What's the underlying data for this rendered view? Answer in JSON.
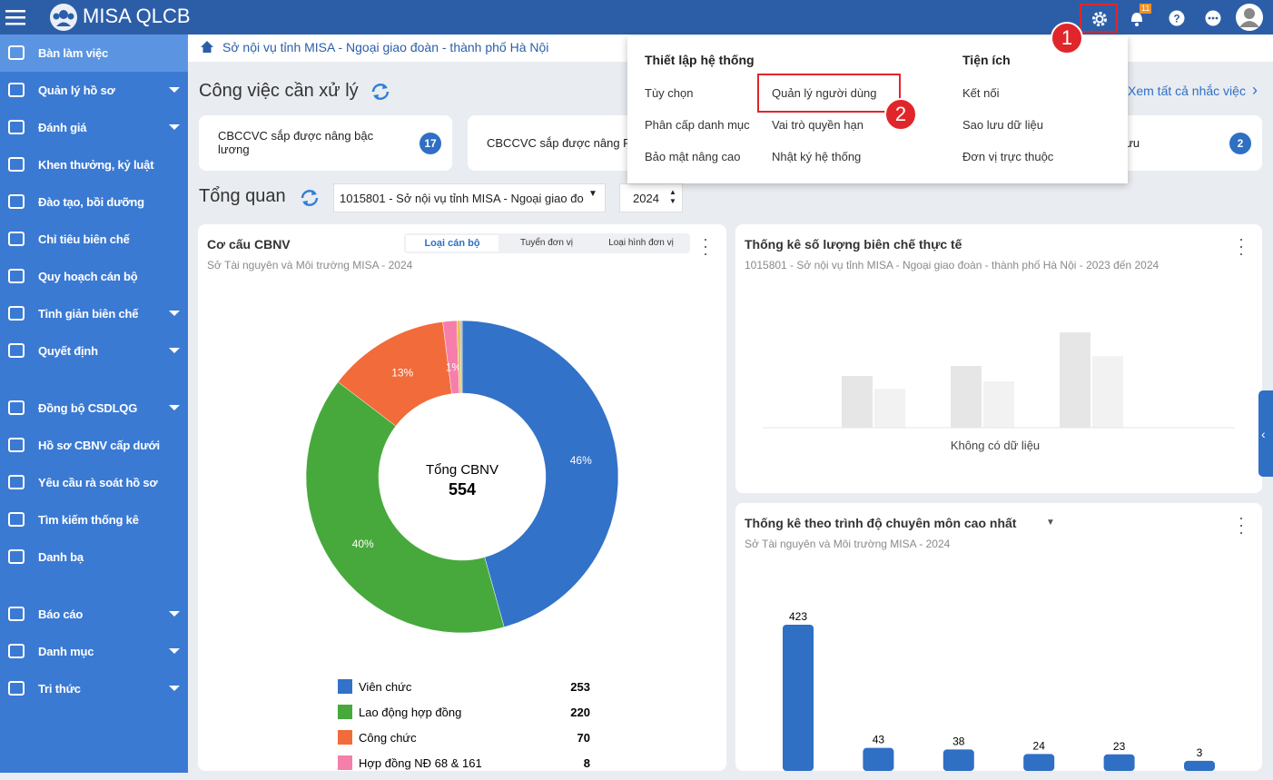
{
  "header": {
    "app_name": "MISA QLCB",
    "notification_count": 11
  },
  "breadcrumb": "Sở nội vụ tỉnh MISA - Ngoại giao đoàn - thành phố Hà Nội",
  "sidebar": {
    "items": [
      {
        "label": "Bàn làm việc",
        "expandable": false,
        "active": true
      },
      {
        "label": "Quản lý hồ sơ",
        "expandable": true,
        "active": false
      },
      {
        "label": "Đánh giá",
        "expandable": true,
        "active": false
      },
      {
        "label": "Khen thưởng, kỷ luật",
        "expandable": false,
        "active": false
      },
      {
        "label": "Đào tạo, bồi dưỡng",
        "expandable": false,
        "active": false
      },
      {
        "label": "Chỉ tiêu biên chế",
        "expandable": false,
        "active": false
      },
      {
        "label": "Quy hoạch cán bộ",
        "expandable": false,
        "active": false
      },
      {
        "label": "Tinh giản biên chế",
        "expandable": true,
        "active": false
      },
      {
        "label": "Quyết định",
        "expandable": true,
        "active": false
      },
      {
        "label": "Đồng bộ CSDLQG",
        "expandable": true,
        "active": false
      },
      {
        "label": "Hồ sơ CBNV cấp dưới",
        "expandable": false,
        "active": false
      },
      {
        "label": "Yêu cầu rà soát hồ sơ",
        "expandable": false,
        "active": false
      },
      {
        "label": "Tìm kiếm thống kê",
        "expandable": false,
        "active": false
      },
      {
        "label": "Danh bạ",
        "expandable": false,
        "active": false
      },
      {
        "label": "Báo cáo",
        "expandable": true,
        "active": false
      },
      {
        "label": "Danh mục",
        "expandable": true,
        "active": false
      },
      {
        "label": "Tri thức",
        "expandable": true,
        "active": false
      }
    ]
  },
  "tasks": {
    "title": "Công việc cần xử lý",
    "view_all": "Xem tất cả nhắc việc",
    "cards": [
      {
        "label": "CBCCVC sắp được nâng bậc lương",
        "count": 17
      },
      {
        "label": "CBCCVC sắp được nâng PC"
      },
      {
        "label": "hưu",
        "count": 2
      }
    ]
  },
  "overview": {
    "title": "Tổng quan",
    "unit": "1015801 - Sở nội vụ tỉnh MISA - Ngoại giao đo",
    "year": 2024
  },
  "settings_menu": {
    "columns": [
      {
        "title": "Thiết lập hệ thống",
        "items": [
          "Tùy chọn",
          "Quản lý người dùng",
          "Phân cấp danh mục",
          "Vai trò quyền hạn",
          "Bảo mật nâng cao",
          "Nhật ký hệ thống"
        ]
      },
      {
        "title": "Tiện ích",
        "items": [
          "Kết nối",
          "Sao lưu dữ liệu",
          "Đơn vị trực thuộc"
        ]
      }
    ]
  },
  "callouts": [
    1,
    2
  ],
  "chart_data": [
    {
      "type": "pie",
      "title": "Cơ cấu CBNV",
      "subtitle": "Sở Tài nguyên và Môi trường MISA - 2024",
      "tabs": [
        "Loại cán bộ",
        "Tuyển đơn vị",
        "Loại hình đơn vị"
      ],
      "center_label": "Tổng CBNV",
      "total": 554,
      "categories": [
        "Viên chức",
        "Lao động hợp đồng",
        "Công chức",
        "Hợp đồng NĐ 68 & 161",
        null,
        null
      ],
      "values": [
        253,
        220,
        70,
        8,
        2,
        1
      ],
      "percent_labels": [
        "46%",
        "40%",
        "13%",
        "1%",
        null,
        null
      ],
      "colors": [
        "#3272c8",
        "#47a93c",
        "#f26b3a",
        "#f67eaa",
        "#e3c34d",
        "#a9a9a9"
      ]
    },
    {
      "type": "bar",
      "title": "Thống kê số lượng biên chế thực tế",
      "subtitle": "1015801 - Sở nội vụ tỉnh MISA - Ngoại giao đoàn - thành phố Hà Nội - 2023 đến 2024",
      "no_data": "Không có dữ liệu"
    },
    {
      "type": "bar",
      "title": "Thống kê theo trình độ chuyên môn cao nhất",
      "subtitle": "Sở Tài nguyên và Môi trường MISA - 2024",
      "categories": [
        null,
        null,
        null,
        null,
        null,
        null
      ],
      "values": [
        423,
        43,
        38,
        24,
        23,
        3
      ],
      "color": "#2f6fc4"
    }
  ]
}
